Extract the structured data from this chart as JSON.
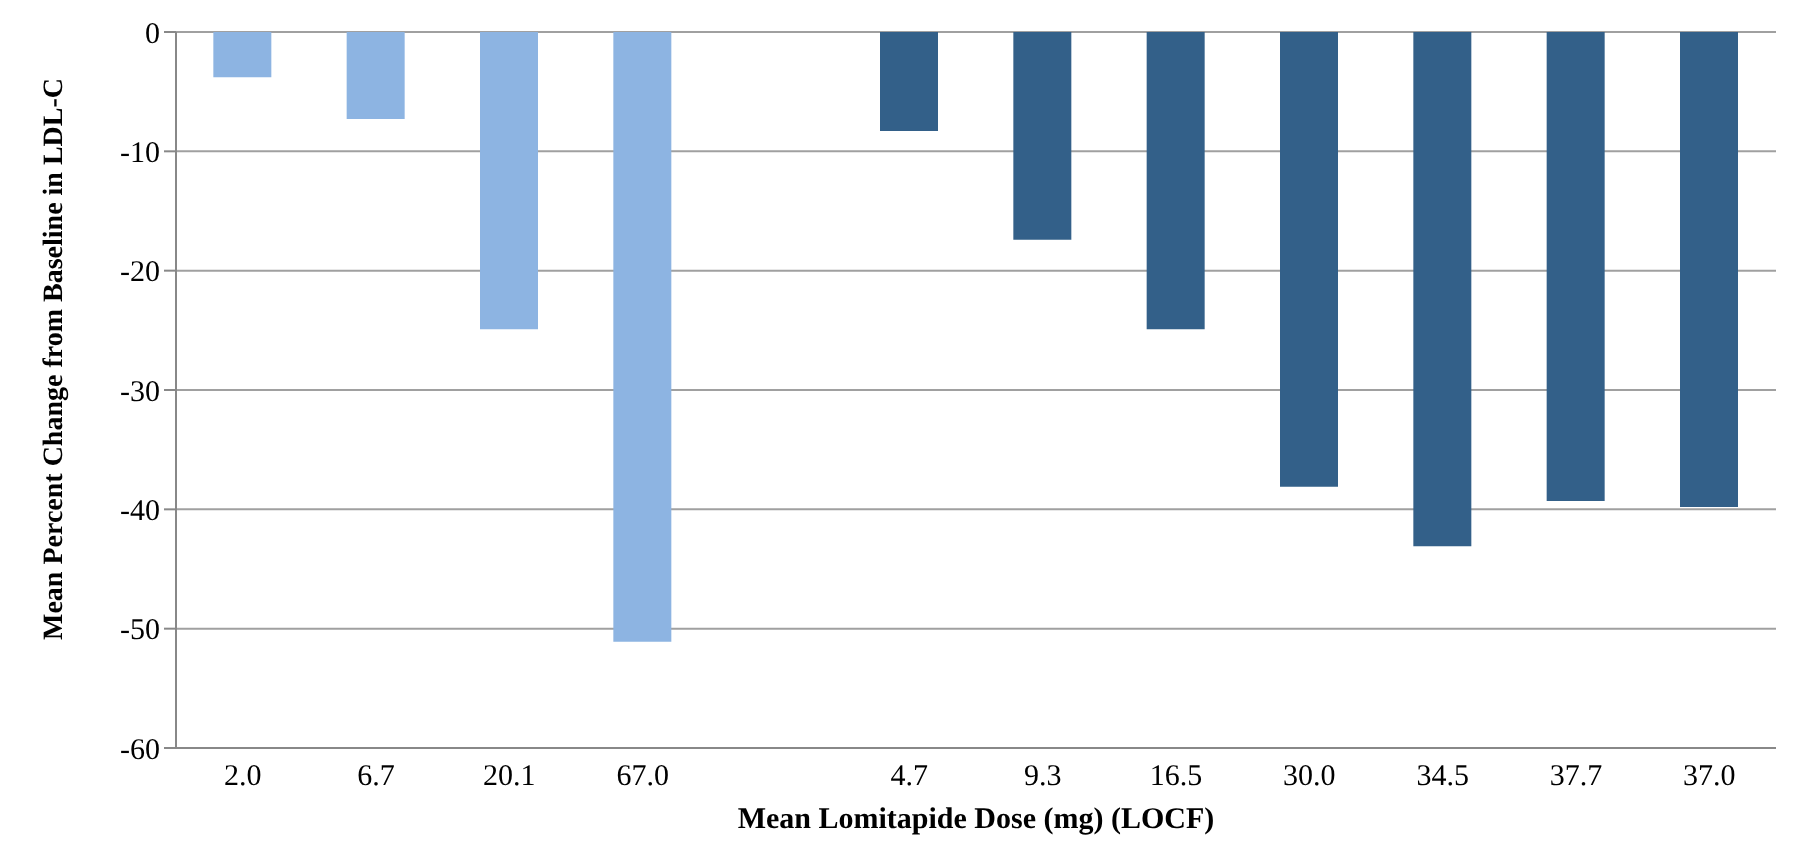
{
  "chart_data": {
    "type": "bar",
    "xlabel": "Mean Lomitapide Dose (mg) (LOCF)",
    "ylabel": "Mean Percent Change from Baseline in LDL-C",
    "categories": [
      "2.0",
      "6.7",
      "20.1",
      "67.0",
      null,
      "4.7",
      "9.3",
      "16.5",
      "30.0",
      "34.5",
      "37.7",
      "37.0"
    ],
    "values": [
      -3.8,
      -7.3,
      -24.9,
      -51.1,
      null,
      -8.3,
      -17.4,
      -24.9,
      -38.1,
      -43.1,
      -39.3,
      -39.8
    ],
    "colors": [
      "#8db4e2",
      "#8db4e2",
      "#8db4e2",
      "#8db4e2",
      "#8db4e2",
      "#336089",
      "#336089",
      "#336089",
      "#336089",
      "#336089",
      "#336089",
      "#336089"
    ],
    "ylim": [
      -60,
      0
    ],
    "yticks": [
      -60,
      -50,
      -40,
      -30,
      -20,
      -10,
      0
    ],
    "grid": "y"
  }
}
